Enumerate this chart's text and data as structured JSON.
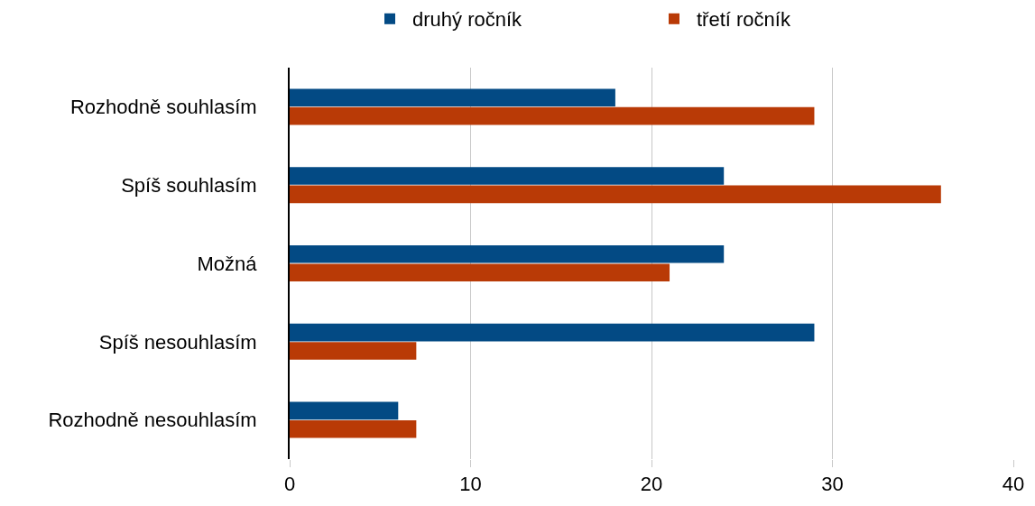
{
  "chart_data": {
    "type": "bar",
    "orientation": "horizontal",
    "categories": [
      "Rozhodně souhlasím",
      "Spíš souhlasím",
      "Možná",
      "Spíš nesouhlasím",
      "Rozhodně nesouhlasím"
    ],
    "series": [
      {
        "name": "druhý ročník",
        "color": "#034a84",
        "values": [
          18,
          24,
          24,
          29,
          6
        ]
      },
      {
        "name": "třetí ročník",
        "color": "#b93a06",
        "values": [
          29,
          36,
          21,
          7,
          7
        ]
      }
    ],
    "xlim": [
      0,
      40
    ],
    "xticks": [
      0,
      10,
      20,
      30,
      40
    ],
    "grid": "x",
    "legend": "top"
  }
}
